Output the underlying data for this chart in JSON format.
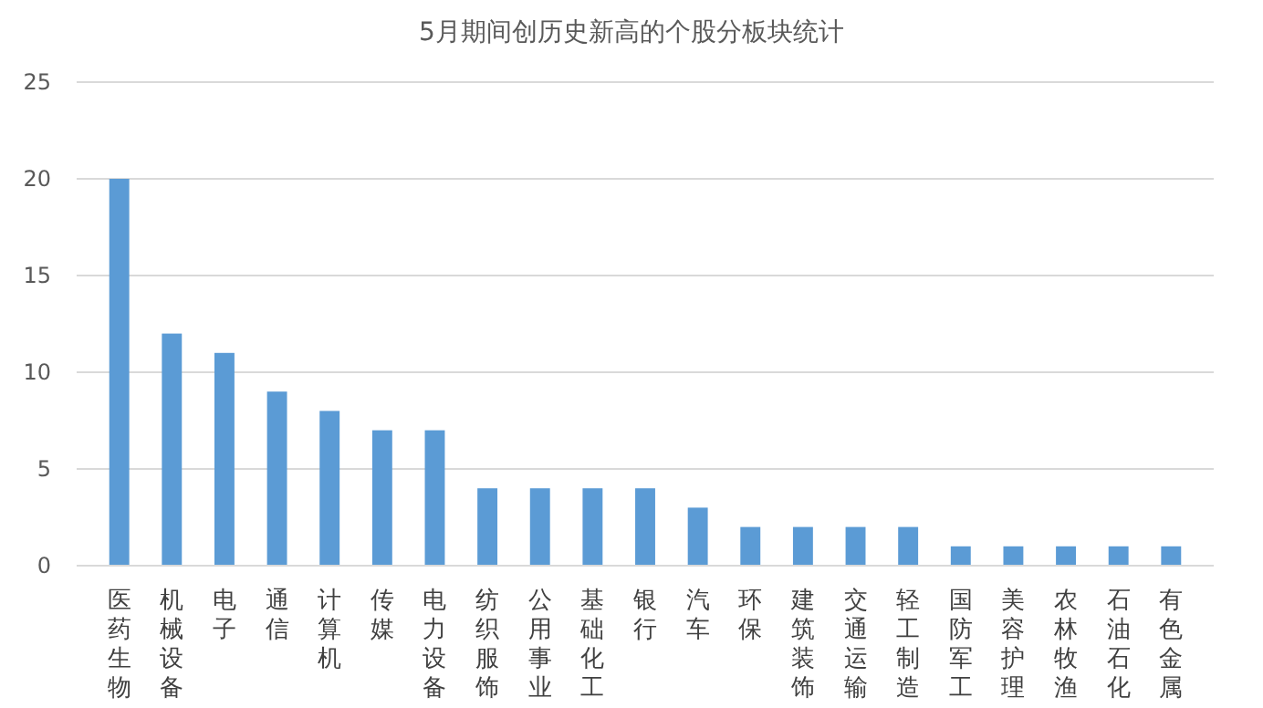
{
  "chart_data": {
    "type": "bar",
    "title": "5月期间创历史新高的个股分板块统计",
    "categories": [
      "医药生物",
      "机械设备",
      "电子",
      "通信",
      "计算机",
      "传媒",
      "电力设备",
      "纺织服饰",
      "公用事业",
      "基础化工",
      "银行",
      "汽车",
      "环保",
      "建筑装饰",
      "交通运输",
      "轻工制造",
      "国防军工",
      "美容护理",
      "农林牧渔",
      "石油石化",
      "有色金属"
    ],
    "values": [
      20,
      12,
      11,
      9,
      8,
      7,
      7,
      4,
      4,
      4,
      4,
      3,
      2,
      2,
      2,
      2,
      1,
      1,
      1,
      1,
      1
    ],
    "color": "#5b9bd5",
    "ylim": [
      0,
      25
    ],
    "yticks": [
      0,
      5,
      10,
      15,
      20,
      25
    ],
    "grid": "y"
  }
}
